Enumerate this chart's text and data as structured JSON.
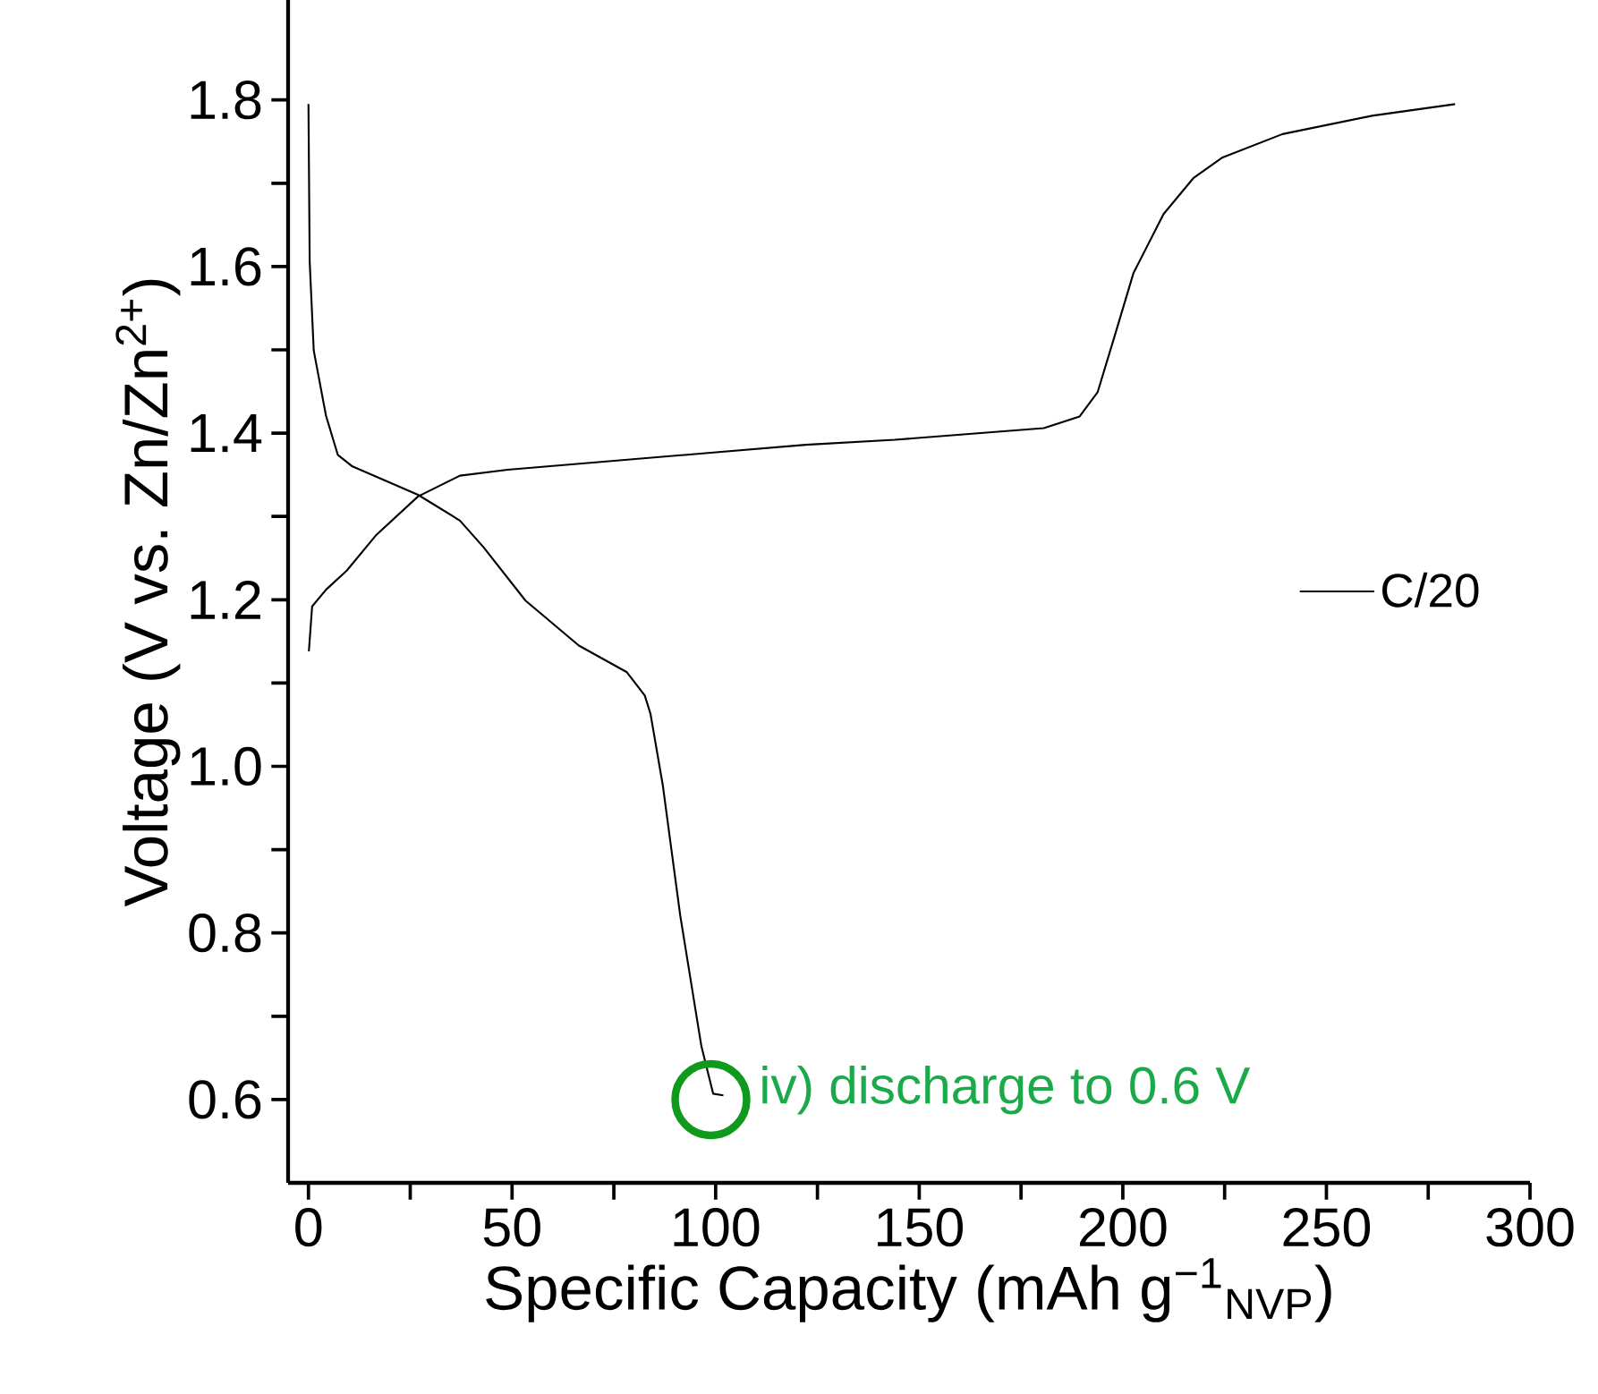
{
  "chart_data": {
    "type": "line",
    "xlabel": "Specific Capacity (mAh g$^{−1}$$_{NVP}$)",
    "ylabel": "Voltage (V vs. Zn/Zn$^{2+}$)",
    "xlim": [
      -5,
      300
    ],
    "ylim": [
      0.5,
      1.92
    ],
    "xticks": [
      0,
      {
        "value": 25,
        "label": null
      },
      50,
      {
        "value": 75,
        "label": null
      },
      100,
      {
        "value": 125,
        "label": null
      },
      150,
      {
        "value": 175,
        "label": null
      },
      200,
      {
        "value": 225,
        "label": null
      },
      250,
      {
        "value": 275,
        "label": null
      },
      300
    ],
    "yticks": [
      0.6,
      {
        "value": 0.7,
        "label": null
      },
      0.8,
      {
        "value": 0.9,
        "label": null
      },
      {
        "value": 1.0,
        "label": "1.0"
      },
      {
        "value": 1.1,
        "label": null
      },
      1.2,
      {
        "value": 1.3,
        "label": null
      },
      1.4,
      {
        "value": 1.5,
        "label": null
      },
      1.6,
      {
        "value": 1.7,
        "label": null
      },
      1.8
    ],
    "series": [
      {
        "name": "C/20",
        "color": "#000000",
        "x": [
          0,
          0.3,
          1.3,
          4.3,
          7.2,
          10.8,
          26.9,
          37.2,
          43,
          53.3,
          66.4,
          78.2,
          82.6,
          84,
          87,
          91.3,
          96.5,
          99.4,
          101.9,
          null,
          0.1,
          0.9,
          4.3,
          9.4,
          16.7,
          26.9,
          37.2,
          48.9,
          100.1,
          122.1,
          144,
          180.6,
          189.4,
          193.8,
          198.2,
          202.6,
          210,
          217.3,
          224.5,
          239.2,
          261.2,
          281.6
        ],
        "values": [
          1.795,
          1.606,
          1.499,
          1.421,
          1.374,
          1.36,
          1.326,
          1.295,
          1.263,
          1.199,
          1.145,
          1.113,
          1.085,
          1.063,
          0.978,
          0.821,
          0.664,
          0.607,
          0.605,
          null,
          1.138,
          1.192,
          1.212,
          1.235,
          1.278,
          1.324,
          1.349,
          1.356,
          1.377,
          1.386,
          1.392,
          1.406,
          1.42,
          1.449,
          1.52,
          1.592,
          1.663,
          1.706,
          1.731,
          1.759,
          1.781,
          1.795
        ]
      }
    ],
    "legend": "right",
    "marker": "none",
    "line_style": "solid",
    "annotations": [
      {
        "text": "iv) discharge to 0.6 V",
        "x": 100,
        "y": 0.6
      }
    ]
  }
}
